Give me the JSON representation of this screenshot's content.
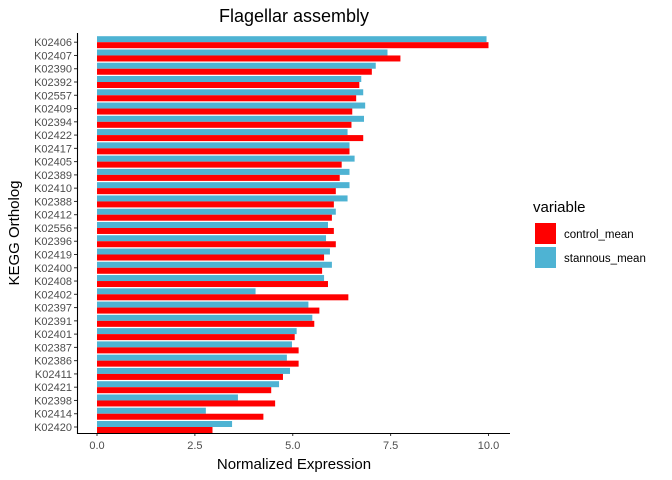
{
  "chart_data": {
    "type": "bar",
    "orientation": "horizontal",
    "title": "Flagellar assembly",
    "xlabel": "Normalized Expression",
    "ylabel": "KEGG Ortholog",
    "xlim": [
      0,
      10.5
    ],
    "xticks": [
      0,
      2.5,
      5,
      7.5,
      10
    ],
    "xtick_labels": [
      "0.0",
      "2.5",
      "5.0",
      "7.5",
      "10.0"
    ],
    "grid": false,
    "legend_position": "right",
    "legend_title": "variable",
    "categories": [
      "K02406",
      "K02407",
      "K02390",
      "K02392",
      "K02557",
      "K02409",
      "K02394",
      "K02422",
      "K02417",
      "K02405",
      "K02389",
      "K02410",
      "K02388",
      "K02412",
      "K02556",
      "K02396",
      "K02419",
      "K02400",
      "K02408",
      "K02402",
      "K02397",
      "K02391",
      "K02401",
      "K02387",
      "K02386",
      "K02411",
      "K02421",
      "K02398",
      "K02414",
      "K02420"
    ],
    "series": [
      {
        "name": "control_mean",
        "color": "#ff0000",
        "values": [
          10.0,
          7.75,
          7.02,
          6.7,
          6.62,
          6.52,
          6.5,
          6.8,
          6.45,
          6.25,
          6.2,
          6.1,
          6.05,
          6.0,
          6.05,
          6.1,
          5.8,
          5.75,
          5.9,
          6.42,
          5.68,
          5.55,
          5.05,
          5.15,
          5.15,
          4.75,
          4.45,
          4.55,
          4.25,
          2.95
        ]
      },
      {
        "name": "stannous_mean",
        "color": "#4eb3d3",
        "values": [
          9.95,
          7.42,
          7.12,
          6.75,
          6.8,
          6.85,
          6.82,
          6.4,
          6.45,
          6.58,
          6.45,
          6.45,
          6.4,
          6.1,
          5.9,
          5.85,
          5.95,
          6.0,
          5.8,
          4.05,
          5.4,
          5.5,
          5.1,
          4.98,
          4.85,
          4.93,
          4.65,
          3.6,
          2.78,
          3.45
        ]
      }
    ]
  }
}
